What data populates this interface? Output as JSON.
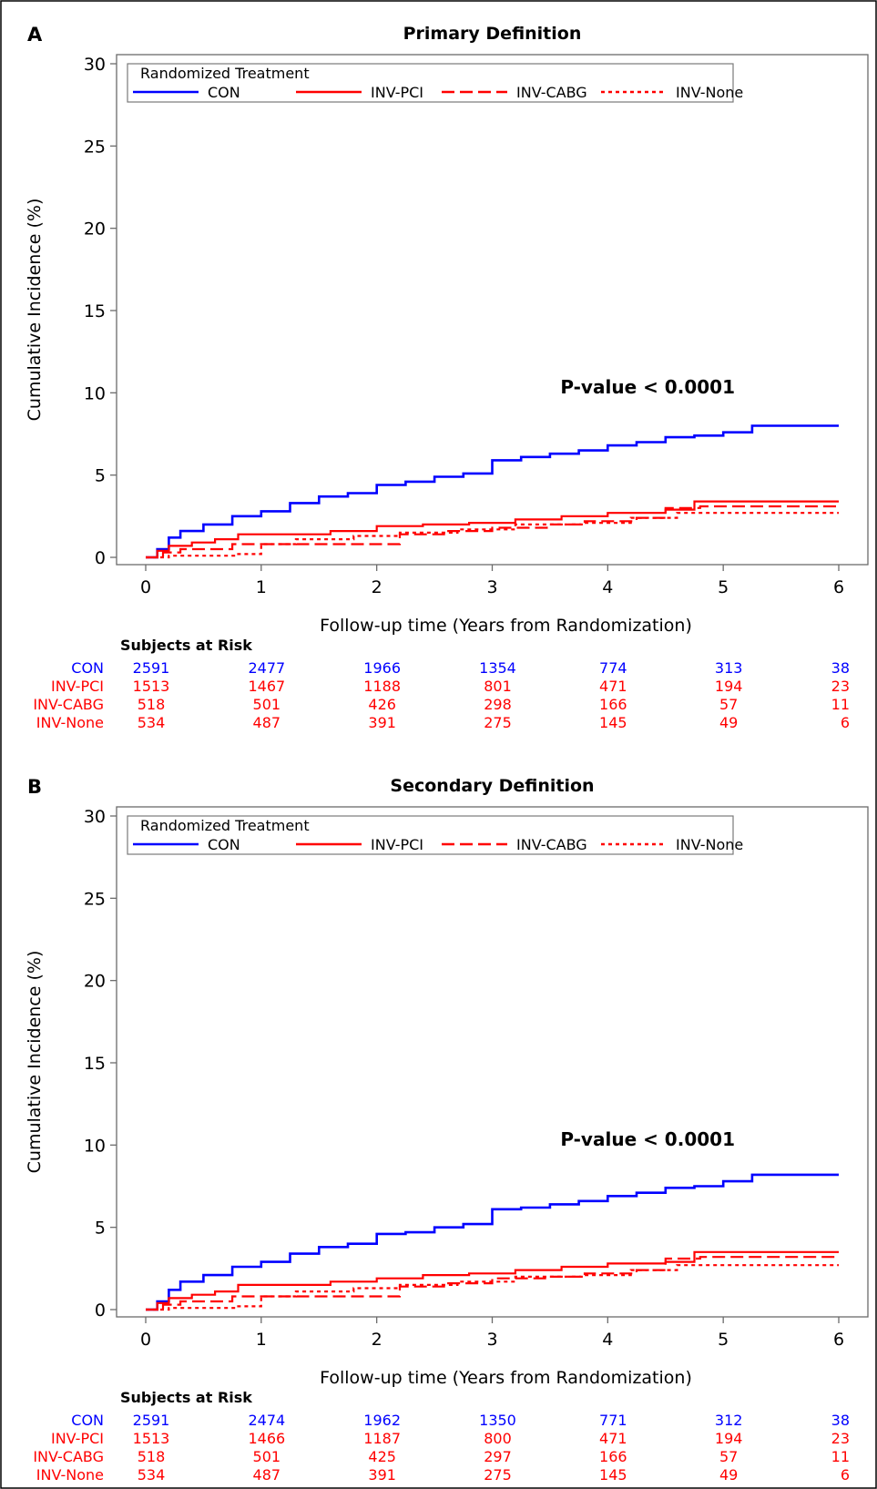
{
  "chart_data": [
    {
      "type": "line",
      "panel_label": "A",
      "title": "Primary Definition",
      "xlabel": "Follow-up time (Years from Randomization)",
      "ylabel": "Cumulative Incidence (%)",
      "xlim": [
        0,
        6
      ],
      "ylim": [
        0,
        30
      ],
      "xticks": [
        "0",
        "1",
        "2",
        "3",
        "4",
        "5",
        "6"
      ],
      "yticks": [
        "0",
        "5",
        "10",
        "15",
        "20",
        "25",
        "30"
      ],
      "grid": false,
      "legend_title": "Randomized Treatment",
      "legend_position": "top",
      "annotation": "P-value < 0.0001",
      "series": [
        {
          "name": "CON",
          "color": "#0000FF",
          "dash": "solid",
          "x": [
            0,
            0.1,
            0.2,
            0.3,
            0.5,
            0.75,
            1,
            1.25,
            1.5,
            1.75,
            2,
            2.25,
            2.5,
            2.75,
            3,
            3.25,
            3.5,
            3.75,
            4,
            4.25,
            4.5,
            4.75,
            5,
            5.25,
            5.5,
            6
          ],
          "y": [
            0,
            0.5,
            1.2,
            1.6,
            2.0,
            2.5,
            2.8,
            3.3,
            3.7,
            3.9,
            4.4,
            4.6,
            4.9,
            5.1,
            5.9,
            6.1,
            6.3,
            6.5,
            6.8,
            7.0,
            7.3,
            7.4,
            7.6,
            8.0,
            8.0,
            8.0
          ]
        },
        {
          "name": "INV-PCI",
          "color": "#FF0000",
          "dash": "solid",
          "x": [
            0,
            0.1,
            0.2,
            0.4,
            0.6,
            0.8,
            1.2,
            1.6,
            2.0,
            2.4,
            2.8,
            3.2,
            3.6,
            4.0,
            4.5,
            4.75,
            5,
            6
          ],
          "y": [
            0,
            0.4,
            0.7,
            0.9,
            1.1,
            1.4,
            1.4,
            1.6,
            1.9,
            2.0,
            2.1,
            2.3,
            2.5,
            2.7,
            2.9,
            3.4,
            3.4,
            3.4
          ]
        },
        {
          "name": "INV-CABG",
          "color": "#FF0000",
          "dash": "long-dash",
          "x": [
            0,
            0.15,
            0.3,
            0.5,
            0.75,
            1.0,
            1.5,
            2.2,
            2.6,
            3.0,
            3.5,
            3.8,
            4.25,
            4.5,
            4.8,
            6
          ],
          "y": [
            0,
            0.3,
            0.5,
            0.5,
            0.8,
            0.8,
            0.8,
            1.4,
            1.6,
            1.8,
            2.0,
            2.2,
            2.4,
            3.0,
            3.1,
            3.1
          ]
        },
        {
          "name": "INV-None",
          "color": "#FF0000",
          "dash": "dotted",
          "x": [
            0,
            0.2,
            0.5,
            0.8,
            1.0,
            1.3,
            1.8,
            2.2,
            2.7,
            3.2,
            3.8,
            4.2,
            4.6,
            5,
            6
          ],
          "y": [
            0,
            0.1,
            0.1,
            0.2,
            0.8,
            1.1,
            1.3,
            1.5,
            1.7,
            2.0,
            2.1,
            2.4,
            2.7,
            2.7,
            2.7
          ]
        }
      ],
      "risk_table": {
        "heading": "Subjects at Risk",
        "rows": [
          {
            "label": "CON",
            "color": "#0000FF",
            "values": [
              "2591",
              "2477",
              "1966",
              "1354",
              "774",
              "313",
              "38"
            ]
          },
          {
            "label": "INV-PCI",
            "color": "#FF0000",
            "values": [
              "1513",
              "1467",
              "1188",
              "801",
              "471",
              "194",
              "23"
            ]
          },
          {
            "label": "INV-CABG",
            "color": "#FF0000",
            "values": [
              "518",
              "501",
              "426",
              "298",
              "166",
              "57",
              "11"
            ]
          },
          {
            "label": "INV-None",
            "color": "#FF0000",
            "values": [
              "534",
              "487",
              "391",
              "275",
              "145",
              "49",
              "6"
            ]
          }
        ]
      }
    },
    {
      "type": "line",
      "panel_label": "B",
      "title": "Secondary Definition",
      "xlabel": "Follow-up time (Years from Randomization)",
      "ylabel": "Cumulative Incidence (%)",
      "xlim": [
        0,
        6
      ],
      "ylim": [
        0,
        30
      ],
      "xticks": [
        "0",
        "1",
        "2",
        "3",
        "4",
        "5",
        "6"
      ],
      "yticks": [
        "0",
        "5",
        "10",
        "15",
        "20",
        "25",
        "30"
      ],
      "grid": false,
      "legend_title": "Randomized Treatment",
      "legend_position": "top",
      "annotation": "P-value < 0.0001",
      "series": [
        {
          "name": "CON",
          "color": "#0000FF",
          "dash": "solid",
          "x": [
            0,
            0.1,
            0.2,
            0.3,
            0.5,
            0.75,
            1,
            1.25,
            1.5,
            1.75,
            2,
            2.25,
            2.5,
            2.75,
            3,
            3.25,
            3.5,
            3.75,
            4,
            4.25,
            4.5,
            4.75,
            5,
            5.25,
            5.5,
            6
          ],
          "y": [
            0,
            0.5,
            1.2,
            1.7,
            2.1,
            2.6,
            2.9,
            3.4,
            3.8,
            4.0,
            4.6,
            4.7,
            5.0,
            5.2,
            6.1,
            6.2,
            6.4,
            6.6,
            6.9,
            7.1,
            7.4,
            7.5,
            7.8,
            8.2,
            8.2,
            8.2
          ]
        },
        {
          "name": "INV-PCI",
          "color": "#FF0000",
          "dash": "solid",
          "x": [
            0,
            0.1,
            0.2,
            0.4,
            0.6,
            0.8,
            1.2,
            1.6,
            2.0,
            2.4,
            2.8,
            3.2,
            3.6,
            4.0,
            4.5,
            4.75,
            5,
            6
          ],
          "y": [
            0,
            0.4,
            0.7,
            0.9,
            1.1,
            1.5,
            1.5,
            1.7,
            1.9,
            2.1,
            2.2,
            2.4,
            2.6,
            2.8,
            2.9,
            3.5,
            3.5,
            3.5
          ]
        },
        {
          "name": "INV-CABG",
          "color": "#FF0000",
          "dash": "long-dash",
          "x": [
            0,
            0.15,
            0.3,
            0.5,
            0.75,
            1.0,
            1.5,
            2.2,
            2.6,
            3.0,
            3.5,
            3.8,
            4.25,
            4.5,
            4.8,
            6
          ],
          "y": [
            0,
            0.3,
            0.5,
            0.5,
            0.8,
            0.8,
            0.8,
            1.4,
            1.6,
            1.9,
            2.0,
            2.2,
            2.4,
            3.1,
            3.2,
            3.2
          ]
        },
        {
          "name": "INV-None",
          "color": "#FF0000",
          "dash": "dotted",
          "x": [
            0,
            0.2,
            0.5,
            0.8,
            1.0,
            1.3,
            1.8,
            2.2,
            2.7,
            3.2,
            3.8,
            4.2,
            4.6,
            5,
            6
          ],
          "y": [
            0,
            0.1,
            0.1,
            0.2,
            0.8,
            1.1,
            1.3,
            1.5,
            1.7,
            2.0,
            2.1,
            2.4,
            2.7,
            2.7,
            2.7
          ]
        }
      ],
      "risk_table": {
        "heading": "Subjects at Risk",
        "rows": [
          {
            "label": "CON",
            "color": "#0000FF",
            "values": [
              "2591",
              "2474",
              "1962",
              "1350",
              "771",
              "312",
              "38"
            ]
          },
          {
            "label": "INV-PCI",
            "color": "#FF0000",
            "values": [
              "1513",
              "1466",
              "1187",
              "800",
              "471",
              "194",
              "23"
            ]
          },
          {
            "label": "INV-CABG",
            "color": "#FF0000",
            "values": [
              "518",
              "501",
              "425",
              "297",
              "166",
              "57",
              "11"
            ]
          },
          {
            "label": "INV-None",
            "color": "#FF0000",
            "values": [
              "534",
              "487",
              "391",
              "275",
              "145",
              "49",
              "6"
            ]
          }
        ]
      }
    }
  ]
}
